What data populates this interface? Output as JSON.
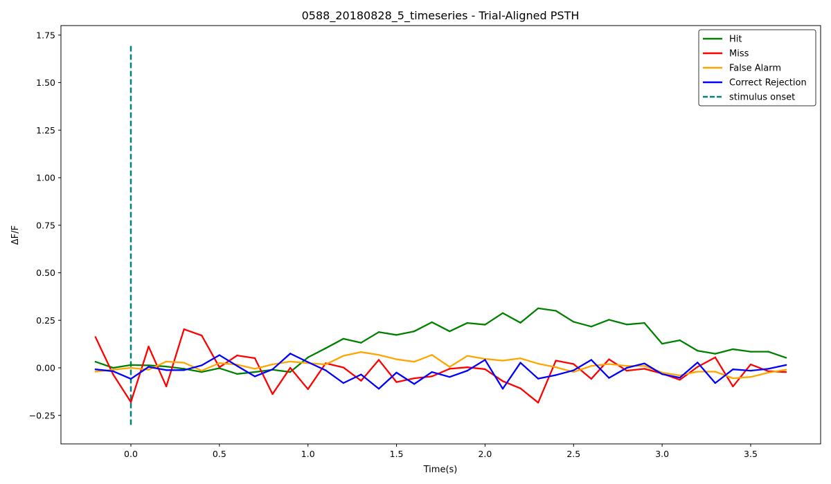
{
  "chart_data": {
    "type": "line",
    "title": "0588_20180828_5_timeseries - Trial-Aligned PSTH",
    "xlabel": "Time(s)",
    "ylabel": "ΔF/F",
    "xlim": [
      -0.395,
      3.895
    ],
    "ylim": [
      -0.4,
      1.8
    ],
    "xticks": [
      0.0,
      0.5,
      1.0,
      1.5,
      2.0,
      2.5,
      3.0,
      3.5
    ],
    "xtick_labels": [
      "0.0",
      "0.5",
      "1.0",
      "1.5",
      "2.0",
      "2.5",
      "3.0",
      "3.5"
    ],
    "yticks": [
      -0.25,
      0.0,
      0.25,
      0.5,
      0.75,
      1.0,
      1.25,
      1.5,
      1.75
    ],
    "ytick_labels": [
      "−0.25",
      "0.00",
      "0.25",
      "0.50",
      "0.75",
      "1.00",
      "1.25",
      "1.50",
      "1.75"
    ],
    "grid": false,
    "legend_position": "top-right",
    "x": [
      -0.2,
      -0.1,
      0.0,
      0.1,
      0.2,
      0.3,
      0.4,
      0.5,
      0.6,
      0.7,
      0.8,
      0.9,
      1.0,
      1.1,
      1.2,
      1.3,
      1.4,
      1.5,
      1.6,
      1.7,
      1.8,
      1.9,
      2.0,
      2.1,
      2.2,
      2.3,
      2.4,
      2.5,
      2.6,
      2.7,
      2.8,
      2.9,
      3.0,
      3.1,
      3.2,
      3.3,
      3.4,
      3.5,
      3.6,
      3.7
    ],
    "series": [
      {
        "name": "Hit",
        "color": "#008000",
        "values": [
          0.032,
          0.0,
          0.015,
          0.013,
          0.007,
          -0.005,
          -0.022,
          -0.002,
          -0.032,
          -0.022,
          -0.01,
          -0.022,
          0.055,
          0.103,
          0.153,
          0.132,
          0.188,
          0.173,
          0.192,
          0.24,
          0.192,
          0.236,
          0.227,
          0.288,
          0.237,
          0.313,
          0.3,
          0.242,
          0.217,
          0.253,
          0.228,
          0.236,
          0.127,
          0.145,
          0.09,
          0.074,
          0.098,
          0.085,
          0.085,
          0.053
        ]
      },
      {
        "name": "Miss",
        "color": "#ff0000",
        "values": [
          0.162,
          -0.035,
          -0.18,
          0.112,
          -0.098,
          0.203,
          0.17,
          0.003,
          0.065,
          0.051,
          -0.138,
          0.0,
          -0.112,
          0.024,
          0.002,
          -0.068,
          0.042,
          -0.075,
          -0.055,
          -0.045,
          -0.005,
          0.003,
          -0.007,
          -0.07,
          -0.108,
          -0.183,
          0.038,
          0.02,
          -0.058,
          0.045,
          -0.015,
          -0.005,
          -0.03,
          -0.063,
          0.005,
          0.055,
          -0.098,
          0.018,
          -0.018,
          -0.022
        ]
      },
      {
        "name": "False Alarm",
        "color": "#ffa500",
        "values": [
          -0.02,
          -0.01,
          0.0,
          -0.01,
          0.033,
          0.027,
          -0.015,
          0.025,
          0.017,
          -0.005,
          0.018,
          0.033,
          0.025,
          0.018,
          0.063,
          0.083,
          0.068,
          0.045,
          0.032,
          0.068,
          0.005,
          0.063,
          0.047,
          0.038,
          0.05,
          0.022,
          0.003,
          -0.022,
          0.01,
          0.02,
          0.01,
          0.01,
          -0.025,
          -0.04,
          -0.02,
          -0.02,
          -0.055,
          -0.048,
          -0.025,
          -0.01
        ]
      },
      {
        "name": "Correct Rejection",
        "color": "#0000ff",
        "values": [
          -0.008,
          -0.018,
          -0.058,
          0.005,
          -0.012,
          -0.012,
          0.013,
          0.067,
          0.01,
          -0.045,
          -0.008,
          0.075,
          0.03,
          -0.013,
          -0.08,
          -0.035,
          -0.11,
          -0.025,
          -0.085,
          -0.022,
          -0.048,
          -0.015,
          0.042,
          -0.11,
          0.027,
          -0.057,
          -0.038,
          -0.013,
          0.042,
          -0.053,
          0.0,
          0.023,
          -0.033,
          -0.052,
          0.028,
          -0.08,
          -0.008,
          -0.015,
          -0.005,
          0.015
        ]
      }
    ],
    "vline": {
      "name": "stimulus onset",
      "x": 0.0,
      "y_range": [
        -0.3,
        1.7
      ],
      "color": "#008080",
      "style": "dashed"
    }
  }
}
